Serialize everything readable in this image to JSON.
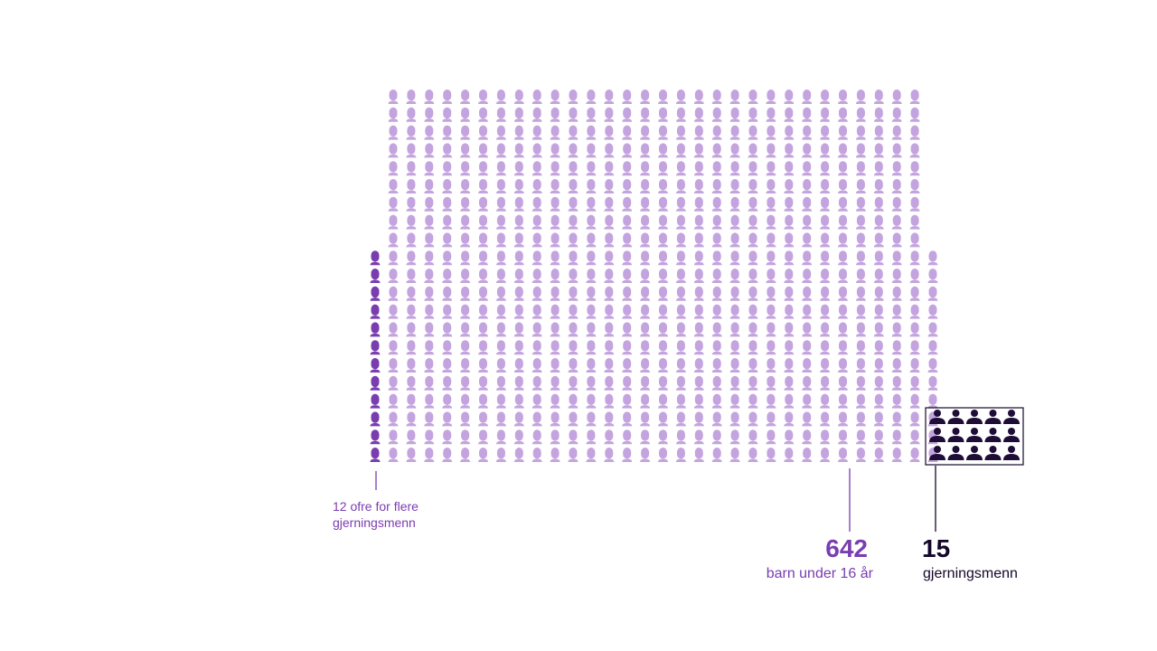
{
  "chart_data": {
    "type": "pictogram",
    "series": [
      {
        "name": "barn under 16 år",
        "value": 642,
        "per_column": 21,
        "color": "#c4a4df"
      },
      {
        "name": "ofre for flere gjerningsmenn",
        "value": 12,
        "color": "#7a3db0"
      },
      {
        "name": "gjerningsmenn",
        "value": 15,
        "columns": 5,
        "color": "#1e0d36"
      }
    ]
  },
  "labels": {
    "multi_victims": [
      "12 ofre for flere",
      "gjerningsmenn"
    ],
    "victims_count": "642",
    "victims_text": "barn under 16 år",
    "perpetrators_count": "15",
    "perpetrators_text": "gjerningsmenn"
  }
}
